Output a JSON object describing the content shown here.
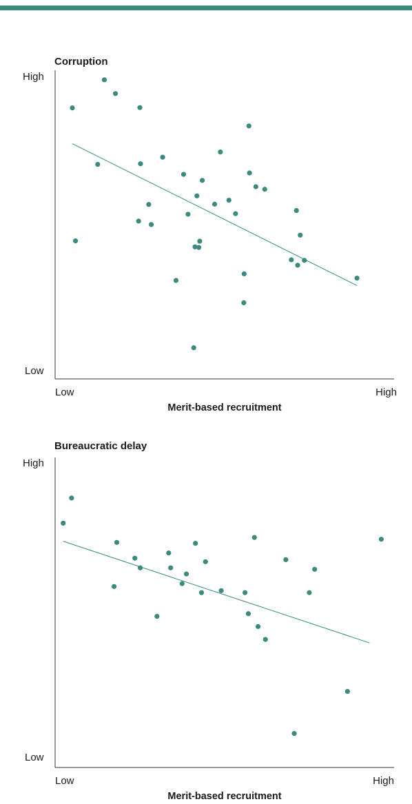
{
  "colors": {
    "accent": "#3a8a7e",
    "point": "#3a8a7e",
    "axis": "#333333"
  },
  "chart_data": [
    {
      "type": "scatter",
      "title": "Corruption",
      "xlabel": "Merit-based recruitment",
      "ylabel": "",
      "x_ticks": [
        "Low",
        "High"
      ],
      "y_ticks": [
        "Low",
        "High"
      ],
      "xlim": [
        0,
        100
      ],
      "ylim": [
        0,
        100
      ],
      "grid": false,
      "points": [
        [
          3.7,
          88.8
        ],
        [
          4.7,
          42.4
        ],
        [
          11.7,
          69.1
        ],
        [
          13.8,
          98.6
        ],
        [
          17.3,
          93.8
        ],
        [
          24.6,
          49.3
        ],
        [
          25.0,
          88.9
        ],
        [
          25.2,
          69.3
        ],
        [
          27.8,
          55.1
        ],
        [
          28.6,
          48.1
        ],
        [
          32.2,
          71.6
        ],
        [
          36.4,
          28.6
        ],
        [
          38.8,
          65.6
        ],
        [
          40.2,
          51.7
        ],
        [
          42.0,
          5.1
        ],
        [
          42.4,
          40.3
        ],
        [
          43.0,
          58.1
        ],
        [
          43.6,
          40.1
        ],
        [
          43.9,
          42.3
        ],
        [
          44.7,
          63.5
        ],
        [
          48.6,
          55.2
        ],
        [
          50.4,
          73.4
        ],
        [
          53.1,
          56.6
        ],
        [
          55.2,
          51.9
        ],
        [
          57.8,
          20.8
        ],
        [
          57.9,
          30.9
        ],
        [
          59.4,
          82.5
        ],
        [
          59.6,
          66.1
        ],
        [
          61.6,
          61.3
        ],
        [
          64.4,
          60.4
        ],
        [
          72.8,
          35.8
        ],
        [
          74.4,
          53.0
        ],
        [
          74.8,
          33.9
        ],
        [
          75.6,
          44.4
        ],
        [
          76.9,
          35.6
        ],
        [
          93.5,
          29.4
        ]
      ],
      "trendline": {
        "x": [
          3.7,
          93.5
        ],
        "y": [
          76.3,
          26.8
        ]
      }
    },
    {
      "type": "scatter",
      "title": "Bureaucratic delay",
      "xlabel": "Merit-based recruitment",
      "ylabel": "",
      "x_ticks": [
        "Low",
        "High"
      ],
      "y_ticks": [
        "Low",
        "High"
      ],
      "xlim": [
        0,
        100
      ],
      "ylim": [
        0,
        100
      ],
      "grid": false,
      "points": [
        [
          2.0,
          79.4
        ],
        [
          4.5,
          88.0
        ],
        [
          17.2,
          57.7
        ],
        [
          18.0,
          72.8
        ],
        [
          23.4,
          67.4
        ],
        [
          25.0,
          64.1
        ],
        [
          30.0,
          47.5
        ],
        [
          33.5,
          69.2
        ],
        [
          34.1,
          64.1
        ],
        [
          37.5,
          58.7
        ],
        [
          38.8,
          62.0
        ],
        [
          41.5,
          72.5
        ],
        [
          43.3,
          55.6
        ],
        [
          44.5,
          66.2
        ],
        [
          49.2,
          56.3
        ],
        [
          56.3,
          55.6
        ],
        [
          57.3,
          48.4
        ],
        [
          59.1,
          74.5
        ],
        [
          60.2,
          44.0
        ],
        [
          62.4,
          39.6
        ],
        [
          68.5,
          66.9
        ],
        [
          71.0,
          7.4
        ],
        [
          75.5,
          55.6
        ],
        [
          77.1,
          63.6
        ],
        [
          86.9,
          21.8
        ],
        [
          97.0,
          73.9
        ]
      ],
      "trendline": {
        "x": [
          2.0,
          93.5
        ],
        "y": [
          73.2,
          38.4
        ]
      }
    }
  ]
}
